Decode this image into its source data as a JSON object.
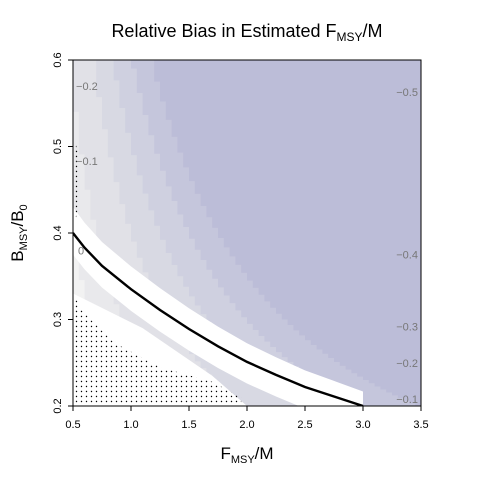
{
  "chart_data": {
    "type": "heatmap",
    "title": {
      "main": "Relative Bias in Estimated F",
      "sub": "MSY",
      "tail": "/M"
    },
    "xlabel": {
      "main": "F",
      "sub": "MSY",
      "tail": "/M"
    },
    "ylabel": {
      "main": "B",
      "sub": "MSY",
      "tail": "/B",
      "sub2": "0"
    },
    "xlim": [
      0.5,
      3.5
    ],
    "ylim": [
      0.2,
      0.6
    ],
    "x_ticks": [
      "0.5",
      "1.0",
      "1.5",
      "2.0",
      "2.5",
      "3.0",
      "3.5"
    ],
    "y_ticks": [
      "0.2",
      "0.3",
      "0.4",
      "0.5",
      "0.6"
    ],
    "contour_levels": [
      "-0.5",
      "-0.4",
      "-0.3",
      "-0.2",
      "-0.1",
      "0"
    ],
    "contour_labels": [
      {
        "text": "−0.2",
        "x": 0.62,
        "y": 0.57
      },
      {
        "text": "−0.1",
        "x": 0.62,
        "y": 0.483
      },
      {
        "text": "0",
        "x": 0.57,
        "y": 0.38
      },
      {
        "text": "−0.5",
        "x": 3.38,
        "y": 0.563
      },
      {
        "text": "−0.4",
        "x": 3.38,
        "y": 0.375
      },
      {
        "text": "−0.3",
        "x": 3.38,
        "y": 0.292
      },
      {
        "text": "−0.2",
        "x": 3.38,
        "y": 0.25
      },
      {
        "text": "−0.1",
        "x": 3.38,
        "y": 0.208
      }
    ],
    "boundary_curve": {
      "x": [
        0.5,
        0.6,
        0.75,
        1.0,
        1.25,
        1.5,
        1.75,
        2.0,
        2.25,
        2.5,
        2.75,
        3.0
      ],
      "y": [
        0.4,
        0.383,
        0.362,
        0.335,
        0.311,
        0.289,
        0.269,
        0.251,
        0.236,
        0.222,
        0.211,
        0.2
      ]
    },
    "stippled_region": "infeasible area below boundary at low F",
    "colors": {
      "zero_band": "#ffffff",
      "near_zero": "#f2f2f2",
      "levels": [
        "#e9e9ec",
        "#e1e1e7",
        "#d8d9e3",
        "#cfd0e0",
        "#c5c6dc",
        "#bcbdd8"
      ],
      "curve": "#000000"
    },
    "grid": false
  }
}
